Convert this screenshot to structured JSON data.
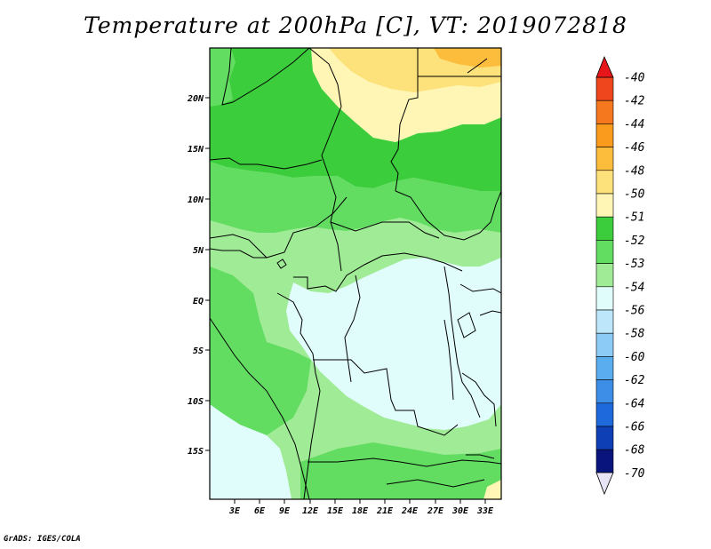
{
  "title": "Temperature at 200hPa [C], VT: 2019072818",
  "credit": "GrADS: IGES/COLA",
  "axes": {
    "lat_labels": [
      "20N",
      "15N",
      "10N",
      "5N",
      "EQ",
      "5S",
      "10S",
      "15S"
    ],
    "lon_labels": [
      "3E",
      "6E",
      "9E",
      "12E",
      "15E",
      "18E",
      "21E",
      "24E",
      "27E",
      "30E",
      "33E"
    ]
  },
  "colorbar": {
    "labels": [
      "-40",
      "-42",
      "-44",
      "-46",
      "-48",
      "-50",
      "-51",
      "-52",
      "-53",
      "-54",
      "-56",
      "-58",
      "-60",
      "-62",
      "-64",
      "-66",
      "-68",
      "-70"
    ],
    "colors": [
      "#e6161b",
      "#f0461e",
      "#f5781e",
      "#fa9b1e",
      "#fcbc3c",
      "#fde17a",
      "#fff6b5",
      "#3ccd3c",
      "#62dd62",
      "#a0eb96",
      "#e0fdfc",
      "#bde6fa",
      "#8ccbf5",
      "#5aaef0",
      "#3c8ee6",
      "#1e6adc",
      "#0e3fb4",
      "#0a147d",
      "#e8e4f5"
    ]
  },
  "colors": {
    "c_m51": "#fff6b5",
    "c_m50": "#fde17a",
    "c_m48": "#fcbc3c",
    "c_m52": "#3ccd3c",
    "c_m53": "#62dd62",
    "c_m54": "#a0eb96",
    "c_m56": "#e0fdfc"
  }
}
